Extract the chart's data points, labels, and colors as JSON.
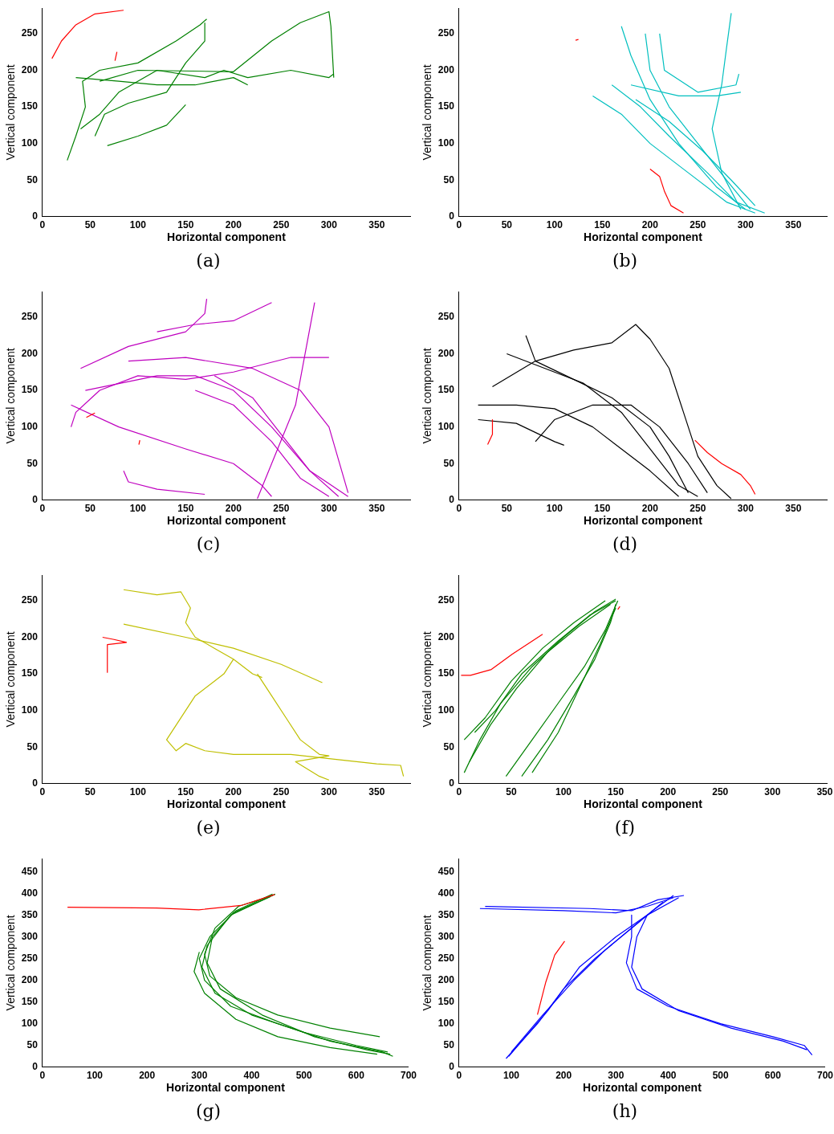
{
  "chart_data": [
    {
      "type": "line",
      "xlabel": "Horizontal component",
      "ylabel": "Vertical component",
      "xlim": [
        0,
        385
      ],
      "ylim": [
        0,
        285
      ],
      "xticks": [
        0,
        50,
        100,
        150,
        200,
        250,
        300,
        350
      ],
      "yticks": [
        0,
        50,
        100,
        150,
        200,
        250
      ],
      "grid": false,
      "legend": false,
      "marker": "none",
      "annotations": [
        "(a)"
      ],
      "series": [
        {
          "color": "#ff0000",
          "x": [
            10,
            20,
            35,
            55,
            85
          ],
          "values": [
            216,
            240,
            262,
            277,
            282
          ]
        },
        {
          "color": "#ff0000",
          "x": [
            76,
            78
          ],
          "values": [
            213,
            225
          ]
        },
        {
          "color": "#008000",
          "x": [
            26,
            35,
            45,
            42,
            60,
            100,
            140,
            165,
            172
          ],
          "values": [
            77,
            110,
            150,
            185,
            200,
            210,
            240,
            262,
            270
          ]
        },
        {
          "color": "#008000",
          "x": [
            40,
            60,
            80,
            120,
            170,
            190,
            215,
            260,
            300,
            305
          ],
          "values": [
            120,
            140,
            170,
            200,
            190,
            200,
            190,
            200,
            190,
            195
          ]
        },
        {
          "color": "#008000",
          "x": [
            60,
            100,
            200,
            240,
            270,
            300,
            302,
            305
          ],
          "values": [
            185,
            200,
            198,
            240,
            265,
            280,
            260,
            190
          ]
        },
        {
          "color": "#008000",
          "x": [
            68,
            100,
            130,
            150
          ],
          "values": [
            97,
            110,
            125,
            153
          ]
        },
        {
          "color": "#008000",
          "x": [
            35,
            80,
            120,
            160,
            200,
            215
          ],
          "values": [
            190,
            185,
            180,
            180,
            190,
            180
          ]
        },
        {
          "color": "#008000",
          "x": [
            55,
            65,
            90,
            130,
            150,
            170,
            170
          ],
          "values": [
            110,
            140,
            155,
            170,
            210,
            240,
            265
          ]
        }
      ]
    },
    {
      "type": "line",
      "xlabel": "Horizontal component",
      "ylabel": "Vertical component",
      "xlim": [
        0,
        385
      ],
      "ylim": [
        0,
        285
      ],
      "xticks": [
        0,
        50,
        100,
        150,
        200,
        250,
        300,
        350
      ],
      "yticks": [
        0,
        50,
        100,
        150,
        200,
        250
      ],
      "grid": false,
      "legend": false,
      "marker": "none",
      "annotations": [
        "(b)"
      ],
      "series": [
        {
          "color": "#ff0000",
          "x": [
            200,
            210,
            215,
            222,
            235
          ],
          "values": [
            65,
            55,
            35,
            15,
            5
          ]
        },
        {
          "color": "#ff0000",
          "x": [
            122,
            125
          ],
          "values": [
            241,
            242
          ]
        },
        {
          "color": "#00bfbf",
          "x": [
            140,
            170,
            200,
            240,
            280,
            310
          ],
          "values": [
            165,
            140,
            100,
            60,
            20,
            5
          ]
        },
        {
          "color": "#00bfbf",
          "x": [
            160,
            190,
            220,
            260,
            290,
            320
          ],
          "values": [
            180,
            150,
            110,
            60,
            20,
            5
          ]
        },
        {
          "color": "#00bfbf",
          "x": [
            170,
            180,
            200,
            230,
            270,
            300
          ],
          "values": [
            260,
            220,
            160,
            100,
            40,
            10
          ]
        },
        {
          "color": "#00bfbf",
          "x": [
            195,
            200,
            220,
            250,
            280,
            305
          ],
          "values": [
            250,
            200,
            150,
            100,
            50,
            10
          ]
        },
        {
          "color": "#00bfbf",
          "x": [
            210,
            215,
            250,
            290,
            293
          ],
          "values": [
            250,
            200,
            170,
            180,
            195
          ]
        },
        {
          "color": "#00bfbf",
          "x": [
            285,
            280,
            275,
            265,
            275,
            295
          ],
          "values": [
            278,
            230,
            180,
            120,
            60,
            10
          ]
        },
        {
          "color": "#00bfbf",
          "x": [
            180,
            230,
            270,
            295
          ],
          "values": [
            180,
            165,
            165,
            170
          ]
        },
        {
          "color": "#00bfbf",
          "x": [
            185,
            220,
            255,
            285,
            310
          ],
          "values": [
            160,
            130,
            90,
            50,
            15
          ]
        }
      ]
    },
    {
      "type": "line",
      "xlabel": "Horizontal component",
      "ylabel": "Vertical component",
      "xlim": [
        0,
        385
      ],
      "ylim": [
        0,
        285
      ],
      "xticks": [
        0,
        50,
        100,
        150,
        200,
        250,
        300,
        350
      ],
      "yticks": [
        0,
        50,
        100,
        150,
        200,
        250
      ],
      "grid": false,
      "legend": false,
      "marker": "none",
      "annotations": [
        "(c)"
      ],
      "series": [
        {
          "color": "#ff0000",
          "x": [
            46,
            55
          ],
          "values": [
            113,
            119
          ]
        },
        {
          "color": "#ff0000",
          "x": [
            101,
            102
          ],
          "values": [
            76,
            82
          ]
        },
        {
          "color": "#bf00bf",
          "x": [
            30,
            35,
            60,
            100,
            150,
            200,
            260,
            300
          ],
          "values": [
            100,
            120,
            150,
            170,
            165,
            175,
            195,
            195
          ]
        },
        {
          "color": "#bf00bf",
          "x": [
            40,
            90,
            150,
            170,
            172
          ],
          "values": [
            180,
            210,
            230,
            255,
            275
          ]
        },
        {
          "color": "#bf00bf",
          "x": [
            45,
            120,
            160,
            200,
            240,
            280,
            320
          ],
          "values": [
            150,
            170,
            170,
            150,
            100,
            40,
            5
          ]
        },
        {
          "color": "#bf00bf",
          "x": [
            160,
            200,
            240,
            270,
            300
          ],
          "values": [
            150,
            130,
            80,
            30,
            5
          ]
        },
        {
          "color": "#bf00bf",
          "x": [
            180,
            220,
            250,
            280,
            310
          ],
          "values": [
            170,
            140,
            90,
            40,
            5
          ]
        },
        {
          "color": "#bf00bf",
          "x": [
            285,
            275,
            265,
            240,
            225
          ],
          "values": [
            270,
            200,
            130,
            50,
            2
          ]
        },
        {
          "color": "#bf00bf",
          "x": [
            30,
            80,
            150,
            200,
            230,
            240
          ],
          "values": [
            130,
            100,
            70,
            50,
            20,
            5
          ]
        },
        {
          "color": "#bf00bf",
          "x": [
            85,
            90,
            120,
            170
          ],
          "values": [
            40,
            25,
            15,
            8
          ]
        },
        {
          "color": "#bf00bf",
          "x": [
            120,
            160,
            200,
            240
          ],
          "values": [
            230,
            240,
            245,
            270
          ]
        },
        {
          "color": "#bf00bf",
          "x": [
            90,
            150,
            220,
            270,
            300,
            320
          ],
          "values": [
            190,
            195,
            180,
            150,
            100,
            10
          ]
        }
      ]
    },
    {
      "type": "line",
      "xlabel": "Horizontal component",
      "ylabel": "Vertical component",
      "xlim": [
        0,
        385
      ],
      "ylim": [
        0,
        285
      ],
      "xticks": [
        0,
        50,
        100,
        150,
        200,
        250,
        300,
        350
      ],
      "yticks": [
        0,
        50,
        100,
        150,
        200,
        250
      ],
      "grid": false,
      "legend": false,
      "marker": "none",
      "annotations": [
        "(d)"
      ],
      "series": [
        {
          "color": "#ff0000",
          "x": [
            247,
            260,
            275,
            295,
            305,
            310
          ],
          "values": [
            82,
            65,
            50,
            35,
            20,
            8
          ]
        },
        {
          "color": "#ff0000",
          "x": [
            35,
            35,
            30
          ],
          "values": [
            110,
            90,
            76
          ]
        },
        {
          "color": "#000000",
          "x": [
            35,
            80,
            120,
            160,
            185,
            200,
            220,
            235,
            250,
            270,
            285
          ],
          "values": [
            155,
            190,
            205,
            215,
            240,
            220,
            180,
            120,
            60,
            20,
            2
          ]
        },
        {
          "color": "#000000",
          "x": [
            20,
            60,
            100,
            140,
            170,
            200,
            230
          ],
          "values": [
            130,
            130,
            125,
            100,
            70,
            40,
            5
          ]
        },
        {
          "color": "#000000",
          "x": [
            70,
            80,
            120,
            160,
            200,
            220,
            240
          ],
          "values": [
            225,
            190,
            165,
            140,
            100,
            60,
            10
          ]
        },
        {
          "color": "#000000",
          "x": [
            80,
            100,
            140,
            180,
            210,
            240,
            260
          ],
          "values": [
            80,
            110,
            130,
            130,
            100,
            50,
            10
          ]
        },
        {
          "color": "#000000",
          "x": [
            50,
            90,
            130,
            170,
            200,
            230,
            250
          ],
          "values": [
            200,
            180,
            160,
            120,
            70,
            20,
            5
          ]
        },
        {
          "color": "#000000",
          "x": [
            20,
            60,
            100,
            110
          ],
          "values": [
            110,
            105,
            80,
            75
          ]
        }
      ]
    },
    {
      "type": "line",
      "xlabel": "Horizontal component",
      "ylabel": "Vertical component",
      "xlim": [
        0,
        385
      ],
      "ylim": [
        0,
        285
      ],
      "xticks": [
        0,
        50,
        100,
        150,
        200,
        250,
        300,
        350
      ],
      "yticks": [
        0,
        50,
        100,
        150,
        200,
        250
      ],
      "grid": false,
      "legend": false,
      "marker": "none",
      "annotations": [
        "(e)"
      ],
      "series": [
        {
          "color": "#ff0000",
          "x": [
            63,
            75,
            88,
            68,
            68
          ],
          "values": [
            200,
            197,
            193,
            190,
            152
          ]
        },
        {
          "color": "#bfbf00",
          "x": [
            85,
            150,
            200,
            250,
            293
          ],
          "values": [
            218,
            200,
            185,
            163,
            138
          ]
        },
        {
          "color": "#bfbf00",
          "x": [
            85,
            120,
            145,
            155,
            150,
            160,
            180,
            200,
            220,
            230
          ],
          "values": [
            265,
            258,
            262,
            240,
            220,
            200,
            185,
            170,
            150,
            145
          ]
        },
        {
          "color": "#bfbf00",
          "x": [
            200,
            190,
            180,
            160,
            150,
            140,
            130,
            140,
            150,
            170,
            200,
            260,
            350,
            375,
            378
          ],
          "values": [
            170,
            150,
            140,
            120,
            100,
            80,
            60,
            45,
            55,
            45,
            40,
            40,
            27,
            25,
            10
          ]
        },
        {
          "color": "#bfbf00",
          "x": [
            225,
            240,
            255,
            270,
            290,
            300,
            265,
            290,
            300
          ],
          "values": [
            150,
            120,
            90,
            60,
            40,
            38,
            30,
            10,
            5
          ]
        }
      ]
    },
    {
      "type": "line",
      "xlabel": "Horizontal component",
      "ylabel": "Vertical component",
      "xlim": [
        0,
        352
      ],
      "ylim": [
        0,
        285
      ],
      "xticks": [
        0,
        50,
        100,
        150,
        200,
        250,
        300,
        350
      ],
      "yticks": [
        0,
        50,
        100,
        150,
        200,
        250
      ],
      "grid": false,
      "legend": false,
      "marker": "none",
      "annotations": [
        "(f)"
      ],
      "series": [
        {
          "color": "#ff0000",
          "x": [
            2,
            11,
            31,
            51,
            80
          ],
          "values": [
            148,
            148,
            156,
            177,
            204
          ]
        },
        {
          "color": "#ff0000",
          "x": [
            152,
            154
          ],
          "values": [
            238,
            242
          ]
        },
        {
          "color": "#008000",
          "x": [
            5,
            20,
            40,
            70,
            100,
            130,
            150
          ],
          "values": [
            15,
            60,
            110,
            160,
            200,
            235,
            252
          ]
        },
        {
          "color": "#008000",
          "x": [
            10,
            30,
            55,
            85,
            115,
            145
          ],
          "values": [
            30,
            80,
            130,
            180,
            215,
            245
          ]
        },
        {
          "color": "#008000",
          "x": [
            5,
            25,
            50,
            80,
            110,
            140
          ],
          "values": [
            60,
            90,
            140,
            185,
            220,
            250
          ]
        },
        {
          "color": "#008000",
          "x": [
            15,
            35,
            60,
            95,
            125,
            150
          ],
          "values": [
            70,
            100,
            150,
            195,
            230,
            250
          ]
        },
        {
          "color": "#008000",
          "x": [
            45,
            70,
            95,
            120,
            140,
            152
          ],
          "values": [
            10,
            60,
            110,
            160,
            210,
            250
          ]
        },
        {
          "color": "#008000",
          "x": [
            60,
            85,
            110,
            130,
            145,
            150
          ],
          "values": [
            10,
            60,
            120,
            170,
            220,
            245
          ]
        },
        {
          "color": "#008000",
          "x": [
            70,
            95,
            115,
            135,
            150
          ],
          "values": [
            15,
            70,
            130,
            190,
            240
          ]
        }
      ]
    },
    {
      "type": "line",
      "xlabel": "Horizontal component",
      "ylabel": "Vertical component",
      "xlim": [
        0,
        700
      ],
      "ylim": [
        0,
        480
      ],
      "xticks": [
        0,
        100,
        200,
        300,
        400,
        500,
        600,
        700
      ],
      "yticks": [
        0,
        50,
        100,
        150,
        200,
        250,
        300,
        350,
        400,
        450
      ],
      "grid": false,
      "legend": false,
      "marker": "none",
      "annotations": [
        "(g)"
      ],
      "series": [
        {
          "color": "#ff0000",
          "x": [
            48,
            218,
            299,
            380,
            444
          ],
          "values": [
            368,
            366,
            362,
            372,
            397
          ]
        },
        {
          "color": "#008000",
          "x": [
            440,
            370,
            320,
            300,
            310,
            360,
            450,
            550,
            650,
            670
          ],
          "values": [
            398,
            360,
            300,
            250,
            200,
            140,
            100,
            60,
            35,
            25
          ]
        },
        {
          "color": "#008000",
          "x": [
            445,
            360,
            315,
            305,
            330,
            400,
            500,
            600,
            660
          ],
          "values": [
            398,
            350,
            280,
            230,
            170,
            120,
            80,
            50,
            35
          ]
        },
        {
          "color": "#008000",
          "x": [
            440,
            375,
            330,
            310,
            320,
            370,
            450,
            550,
            645
          ],
          "values": [
            395,
            370,
            320,
            260,
            210,
            160,
            120,
            90,
            70
          ]
        },
        {
          "color": "#008000",
          "x": [
            300,
            290,
            310,
            370,
            450,
            550,
            640
          ],
          "values": [
            265,
            220,
            170,
            110,
            70,
            45,
            30
          ]
        },
        {
          "color": "#008000",
          "x": [
            435,
            365,
            325,
            315,
            340,
            420,
            520,
            620,
            665
          ],
          "values": [
            392,
            355,
            300,
            240,
            180,
            120,
            70,
            40,
            30
          ]
        }
      ]
    },
    {
      "type": "line",
      "xlabel": "Horizontal component",
      "ylabel": "Vertical component",
      "xlim": [
        0,
        700
      ],
      "ylim": [
        0,
        480
      ],
      "xticks": [
        0,
        100,
        200,
        300,
        400,
        500,
        600,
        700
      ],
      "yticks": [
        0,
        50,
        100,
        150,
        200,
        250,
        300,
        350,
        400,
        450
      ],
      "grid": false,
      "legend": false,
      "marker": "none",
      "annotations": [
        "(h)"
      ],
      "series": [
        {
          "color": "#ff0000",
          "x": [
            150,
            166,
            183,
            202
          ],
          "values": [
            121,
            196,
            258,
            290
          ]
        },
        {
          "color": "#0000ff",
          "x": [
            40,
            200,
            300,
            360,
            410
          ],
          "values": [
            365,
            360,
            355,
            370,
            390
          ]
        },
        {
          "color": "#0000ff",
          "x": [
            50,
            250,
            330,
            380,
            430
          ],
          "values": [
            370,
            365,
            360,
            385,
            395
          ]
        },
        {
          "color": "#0000ff",
          "x": [
            90,
            150,
            200,
            260,
            320,
            370,
            410
          ],
          "values": [
            20,
            100,
            180,
            250,
            310,
            360,
            395
          ]
        },
        {
          "color": "#0000ff",
          "x": [
            100,
            160,
            220,
            280,
            340,
            390
          ],
          "values": [
            35,
            120,
            200,
            270,
            330,
            380
          ]
        },
        {
          "color": "#0000ff",
          "x": [
            95,
            170,
            230,
            300,
            360,
            420
          ],
          "values": [
            25,
            130,
            230,
            300,
            350,
            390
          ]
        },
        {
          "color": "#0000ff",
          "x": [
            330,
            330,
            320,
            340,
            400,
            500,
            600,
            660,
            675
          ],
          "values": [
            350,
            300,
            240,
            180,
            140,
            100,
            70,
            50,
            28
          ]
        },
        {
          "color": "#0000ff",
          "x": [
            360,
            340,
            330,
            350,
            420,
            520,
            620,
            665
          ],
          "values": [
            350,
            300,
            230,
            180,
            130,
            90,
            60,
            40
          ]
        }
      ]
    }
  ]
}
